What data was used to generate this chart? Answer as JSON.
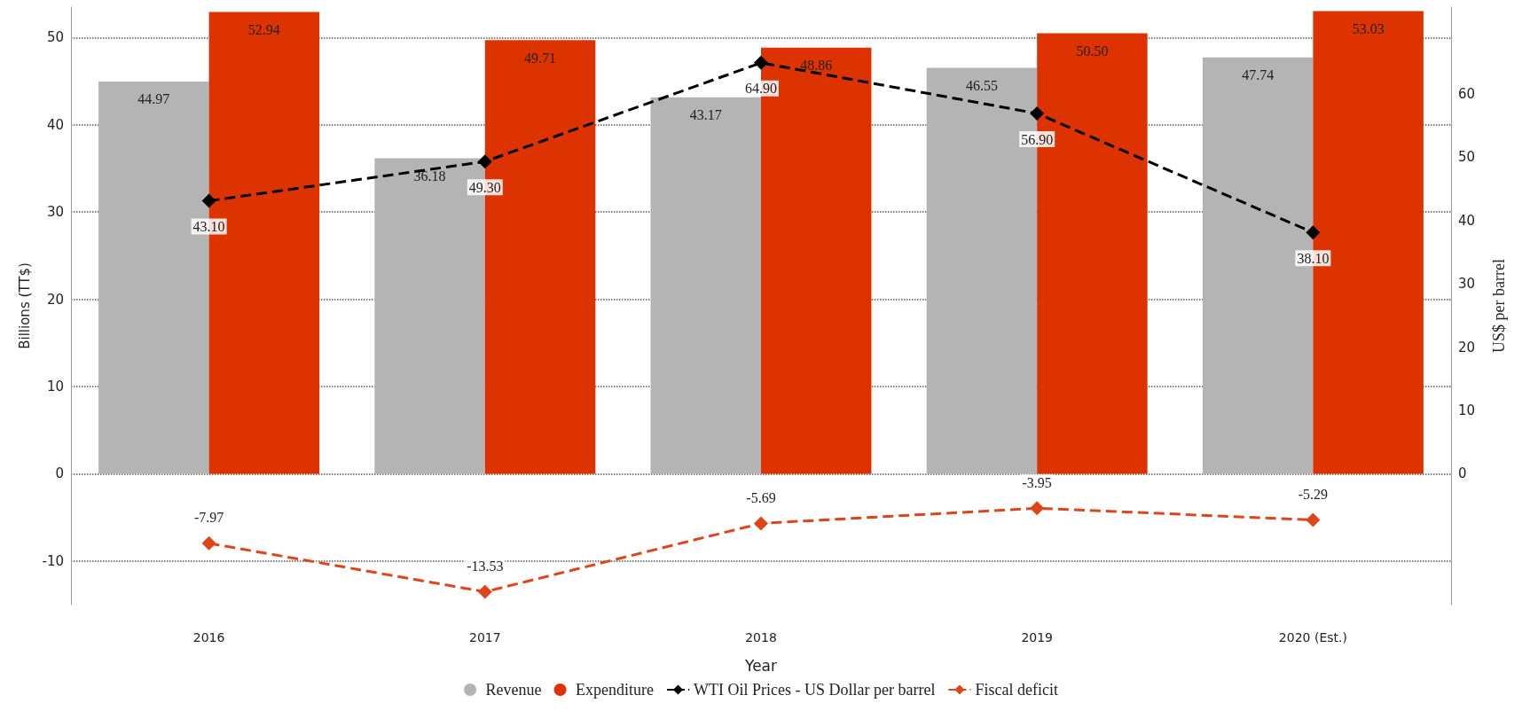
{
  "chart_data": {
    "type": "bar",
    "xlabel": "Year",
    "ylabel": "Billions (TT$)",
    "y2label": "US$ per barrel",
    "categories": [
      "2016",
      "2017",
      "2018",
      "2019",
      "2020 (Est.)"
    ],
    "series": [
      {
        "name": "Revenue",
        "color": "#b4b4b4",
        "values": [
          44.97,
          36.18,
          43.17,
          46.55,
          47.74
        ],
        "value_labels": [
          "44.97",
          "36.18",
          "43.17",
          "46.55",
          "47.74"
        ]
      },
      {
        "name": "Expenditure",
        "color": "#dd3300",
        "values": [
          52.94,
          49.71,
          48.86,
          50.5,
          53.03
        ],
        "value_labels": [
          "52.94",
          "49.71",
          "48.86",
          "50.50",
          "53.03"
        ]
      },
      {
        "name": "WTI Oil Prices - US Dollar per barrel",
        "type": "line",
        "axis": "y2",
        "color": "#000000",
        "marker": "diamond",
        "line_style": "dashed",
        "values": [
          43.1,
          49.3,
          64.9,
          56.9,
          38.1
        ],
        "value_labels": [
          "43.10",
          "49.30",
          "64.90",
          "56.90",
          "38.10"
        ]
      },
      {
        "name": "Fiscal deficit",
        "type": "line",
        "color": "#e0451a",
        "marker": "diamond",
        "line_style": "dashed",
        "values": [
          -7.97,
          -13.53,
          -5.69,
          -3.95,
          -5.29
        ],
        "value_labels": [
          "-7.97",
          "-13.53",
          "-5.69",
          "-3.95",
          "-5.29"
        ]
      }
    ],
    "ylim": [
      -15,
      53.5
    ],
    "yticks": [
      -10,
      0,
      10,
      20,
      30,
      40,
      50
    ],
    "y2lim": [
      -20.66,
      73.7
    ],
    "y2ticks": [
      0,
      10,
      20,
      30,
      40,
      50,
      60
    ],
    "grid": "y",
    "legend": "bottom"
  }
}
